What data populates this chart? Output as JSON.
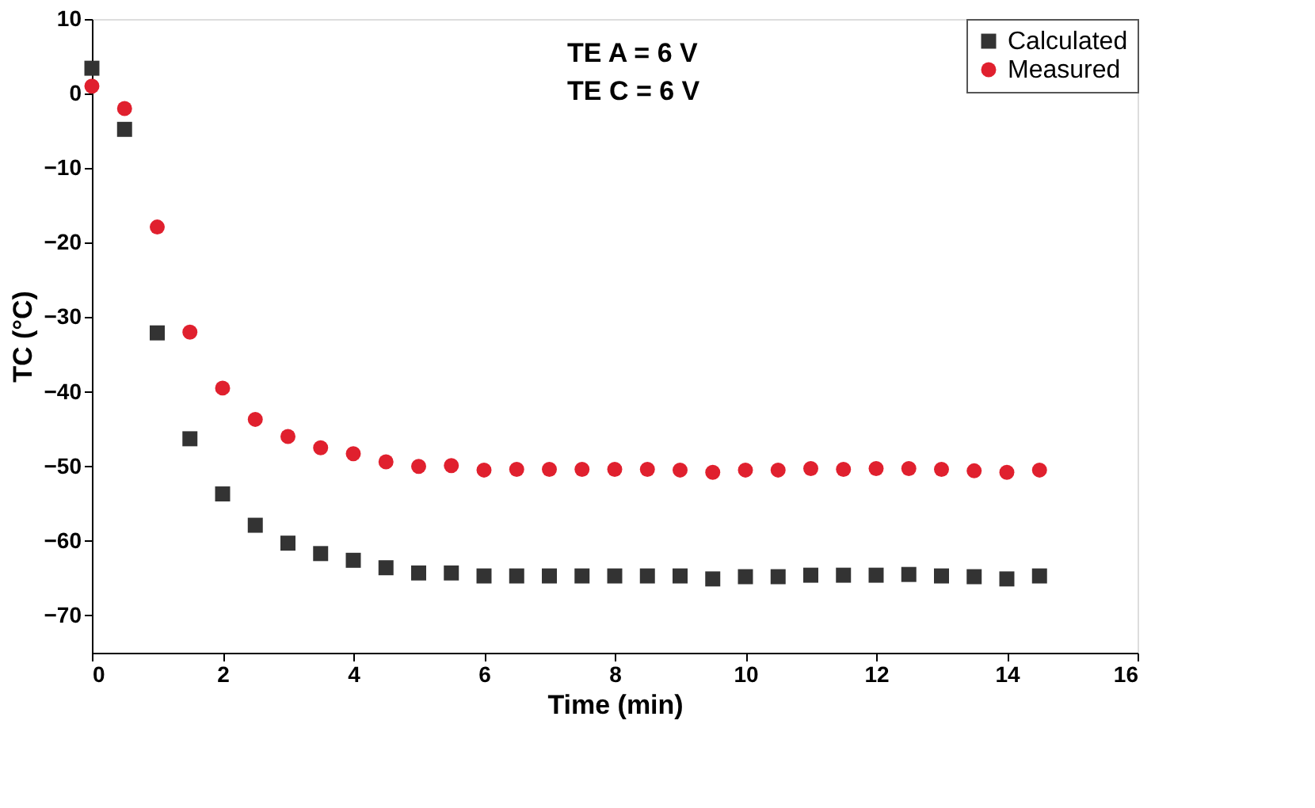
{
  "chart_data": {
    "type": "scatter",
    "xlabel": "Time (min)",
    "ylabel": "TC (°C)",
    "annotations": [
      "TE A = 6 V",
      "TE C = 6 V"
    ],
    "x": [
      0,
      0.5,
      1,
      1.5,
      2,
      2.5,
      3,
      3.5,
      4,
      4.5,
      5,
      5.5,
      6,
      6.5,
      7,
      7.5,
      8,
      8.5,
      9,
      9.5,
      10,
      10.5,
      11,
      11.5,
      12,
      12.5,
      13,
      13.5,
      14,
      14.5
    ],
    "series": [
      {
        "name": "Calculated",
        "color": "#333333",
        "marker": "square",
        "values": [
          3.4,
          -4.8,
          -32.1,
          -46.3,
          -53.7,
          -57.9,
          -60.3,
          -61.7,
          -62.6,
          -63.6,
          -64.3,
          -64.3,
          -64.7,
          -64.7,
          -64.7,
          -64.7,
          -64.7,
          -64.7,
          -64.7,
          -65.1,
          -64.8,
          -64.8,
          -64.6,
          -64.6,
          -64.6,
          -64.5,
          -64.7,
          -64.8,
          -65.1,
          -64.7
        ]
      },
      {
        "name": "Measured",
        "color": "#e0202e",
        "marker": "circle",
        "values": [
          1.0,
          -2.0,
          -17.9,
          -32.0,
          -39.5,
          -43.7,
          -46.0,
          -47.5,
          -48.3,
          -49.4,
          -50.0,
          -49.9,
          -50.5,
          -50.4,
          -50.4,
          -50.4,
          -50.4,
          -50.4,
          -50.5,
          -50.8,
          -50.5,
          -50.5,
          -50.3,
          -50.4,
          -50.3,
          -50.3,
          -50.4,
          -50.6,
          -50.8,
          -50.5
        ]
      }
    ],
    "xlim": [
      0,
      16
    ],
    "xticks": [
      0,
      2,
      4,
      6,
      8,
      10,
      12,
      14,
      16
    ],
    "ylim": [
      -75,
      10
    ],
    "yticks": [
      -70,
      -60,
      -50,
      -40,
      -30,
      -20,
      -10,
      0,
      10
    ],
    "grid": false,
    "legend": "top right"
  }
}
